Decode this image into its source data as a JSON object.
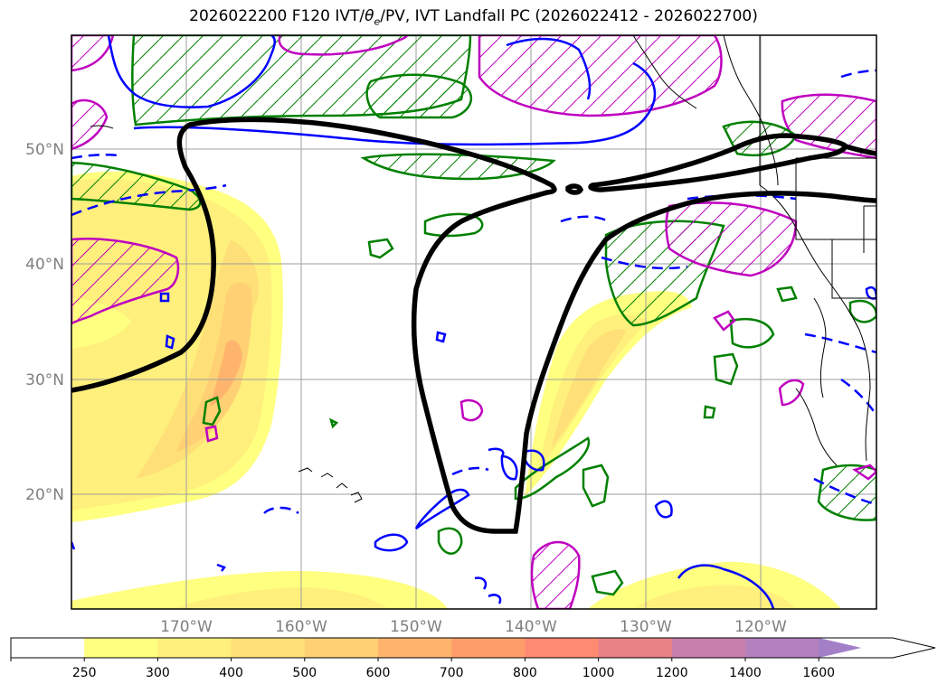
{
  "title": {
    "prefix": "2026022200 F120 IVT/",
    "theta": "θ",
    "theta_sub": "e",
    "suffix": "/PV, IVT Landfall PC (2026022412 - 2026022700)"
  },
  "map": {
    "lat_labels": [
      "50°N",
      "40°N",
      "30°N",
      "20°N"
    ],
    "lon_labels": [
      "170°W",
      "160°W",
      "150°W",
      "140°W",
      "130°W",
      "120°W"
    ]
  },
  "colorbar": {
    "ticks": [
      "250",
      "300",
      "400",
      "500",
      "600",
      "700",
      "800",
      "1000",
      "1200",
      "1400",
      "1600"
    ],
    "colors": [
      "#ffffff",
      "#ffff80",
      "#ffef7c",
      "#ffdf78",
      "#ffd074",
      "#ffb46e",
      "#ff9d6a",
      "#ff8a72",
      "#e98287",
      "#c97fae",
      "#b580be",
      "#a37fc8"
    ]
  },
  "colors": {
    "ivt_pc_contour": "#000000",
    "theta_e_contour": "#008000",
    "pv_contour": "#0000ff",
    "purple_contour": "#bf00bf",
    "coastline": "#000000",
    "gridline": "#9e9e9e"
  }
}
